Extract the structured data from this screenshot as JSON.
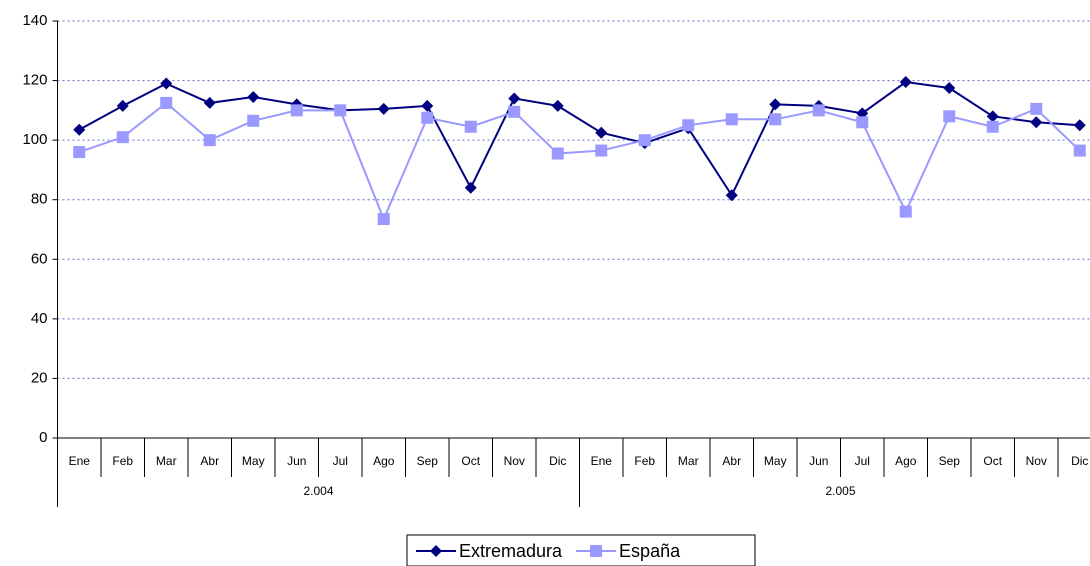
{
  "chart_data": {
    "type": "line",
    "categories": [
      "Ene",
      "Feb",
      "Mar",
      "Abr",
      "May",
      "Jun",
      "Jul",
      "Ago",
      "Sep",
      "Oct",
      "Nov",
      "Dic",
      "Ene",
      "Feb",
      "Mar",
      "Abr",
      "May",
      "Jun",
      "Jul",
      "Ago",
      "Sep",
      "Oct",
      "Nov",
      "Dic"
    ],
    "category_groups": [
      "2.004",
      "2.005"
    ],
    "series": [
      {
        "name": "Extremadura",
        "color": "#000080",
        "marker": "diamond",
        "values": [
          103.5,
          111.5,
          119,
          112.5,
          114.5,
          112,
          110,
          110.5,
          111.5,
          84,
          114,
          111.5,
          102.5,
          99,
          104,
          81.5,
          112,
          111.5,
          109,
          119.5,
          117.5,
          108,
          106,
          105
        ]
      },
      {
        "name": "España",
        "color": "#9999ff",
        "marker": "square",
        "values": [
          96,
          101,
          112.5,
          100,
          106.5,
          110,
          110,
          73.5,
          107.5,
          104.5,
          109.5,
          95.5,
          96.5,
          100,
          105,
          107,
          107,
          110,
          106,
          76,
          108,
          104.5,
          110.5,
          96.5
        ]
      }
    ],
    "ylim": [
      0,
      140
    ],
    "yticks": [
      0,
      20,
      40,
      60,
      80,
      100,
      120,
      140
    ],
    "grid": true,
    "legend": "bottom"
  }
}
